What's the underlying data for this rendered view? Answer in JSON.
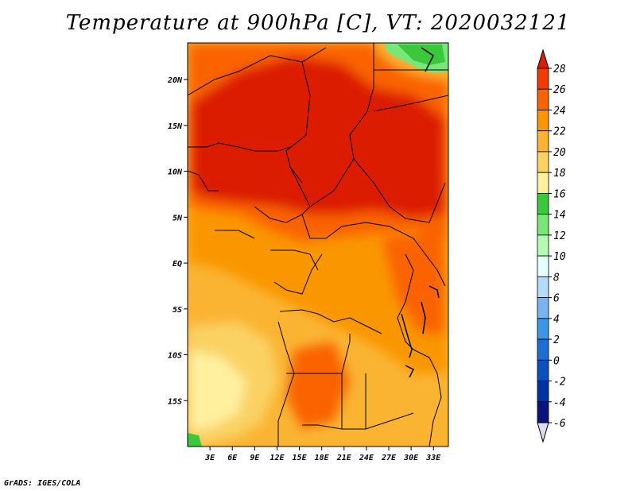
{
  "title": "Temperature at 900hPa [C], VT: 2020032121",
  "credit": "GrADS: IGES/COLA",
  "map": {
    "lon_range": [
      0,
      35
    ],
    "lat_range": [
      -20,
      24
    ],
    "lat_ticks": [
      {
        "value": 20,
        "label": "20N"
      },
      {
        "value": 15,
        "label": "15N"
      },
      {
        "value": 10,
        "label": "10N"
      },
      {
        "value": 5,
        "label": "5N"
      },
      {
        "value": 0,
        "label": "EQ"
      },
      {
        "value": -5,
        "label": "5S"
      },
      {
        "value": -10,
        "label": "10S"
      },
      {
        "value": -15,
        "label": "15S"
      }
    ],
    "lon_ticks": [
      {
        "value": 3,
        "label": "3E"
      },
      {
        "value": 6,
        "label": "6E"
      },
      {
        "value": 9,
        "label": "9E"
      },
      {
        "value": 12,
        "label": "12E"
      },
      {
        "value": 15,
        "label": "15E"
      },
      {
        "value": 18,
        "label": "18E"
      },
      {
        "value": 21,
        "label": "21E"
      },
      {
        "value": 24,
        "label": "24E"
      },
      {
        "value": 27,
        "label": "27E"
      },
      {
        "value": 30,
        "label": "30E"
      },
      {
        "value": 33,
        "label": "33E"
      }
    ]
  },
  "colorbar": {
    "levels": [
      "28",
      "26",
      "24",
      "22",
      "20",
      "18",
      "16",
      "14",
      "12",
      "10",
      "8",
      "6",
      "4",
      "2",
      "0",
      "-2",
      "-4",
      "-6"
    ],
    "colors": [
      "#dc1e00",
      "#f03c00",
      "#fa6400",
      "#fa9600",
      "#fab432",
      "#fad264",
      "#fff0a0",
      "#3cc83c",
      "#78e678",
      "#b4fab4",
      "#e6ffff",
      "#b4dcfa",
      "#78b4f0",
      "#3c96e6",
      "#1e6ed2",
      "#0a50be",
      "#0032a0",
      "#0a1478",
      "#ddddf5"
    ]
  }
}
